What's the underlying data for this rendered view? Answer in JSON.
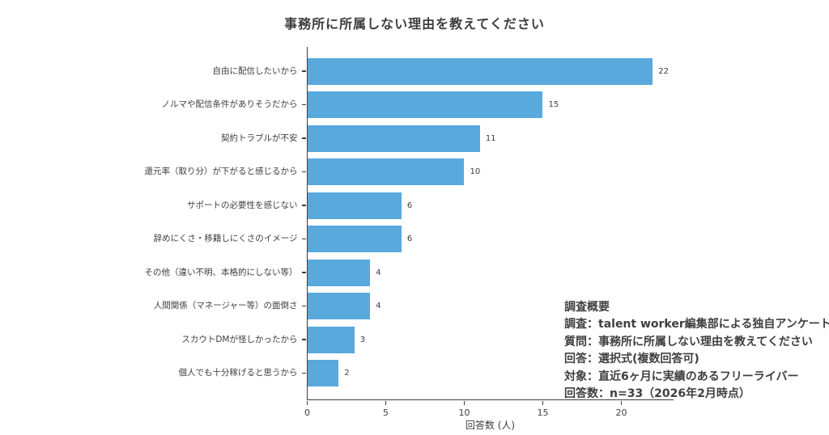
{
  "page": {
    "background_color": "#ffffff",
    "text_color": "#3d3d3d"
  },
  "chart_data": {
    "type": "bar",
    "orientation": "horizontal",
    "title": "事務所に所属しない理由を教えてください",
    "categories": [
      "自由に配信したいから",
      "ノルマや配信条件がありそうだから",
      "契約トラブルが不安",
      "還元率（取り分）が下がると感じるから",
      "サポートの必要性を感じない",
      "辞めにくさ・移籍しにくさのイメージ",
      "その他（違い不明、本格的にしない等）",
      "人間関係（マネージャー等）の面倒さ",
      "スカウトDMが怪しかったから",
      "個人でも十分稼げると思うから"
    ],
    "values": [
      22,
      15,
      11,
      10,
      6,
      6,
      4,
      4,
      3,
      2
    ],
    "value_labels": [
      "22",
      "15",
      "11",
      "10",
      "6",
      "6",
      "4",
      "4",
      "3",
      "2"
    ],
    "xlabel": "回答数 (人)",
    "ylabel": "",
    "xticks": [
      0,
      5,
      10,
      15,
      20
    ],
    "xlim": [
      0,
      23.3
    ],
    "grid": false,
    "legend": "none",
    "bar_color": "#59a9dd",
    "axis_color": "#3d3d3d"
  },
  "annotation": {
    "lines": [
      "調査概要",
      "調査：talent worker編集部による独自アンケート",
      "質問：事務所に所属しない理由を教えてください",
      "回答：選択式(複数回答可)",
      "対象：直近6ヶ月に実績のあるフリーライバー",
      "回答数：n=33（2026年2月時点）"
    ]
  }
}
